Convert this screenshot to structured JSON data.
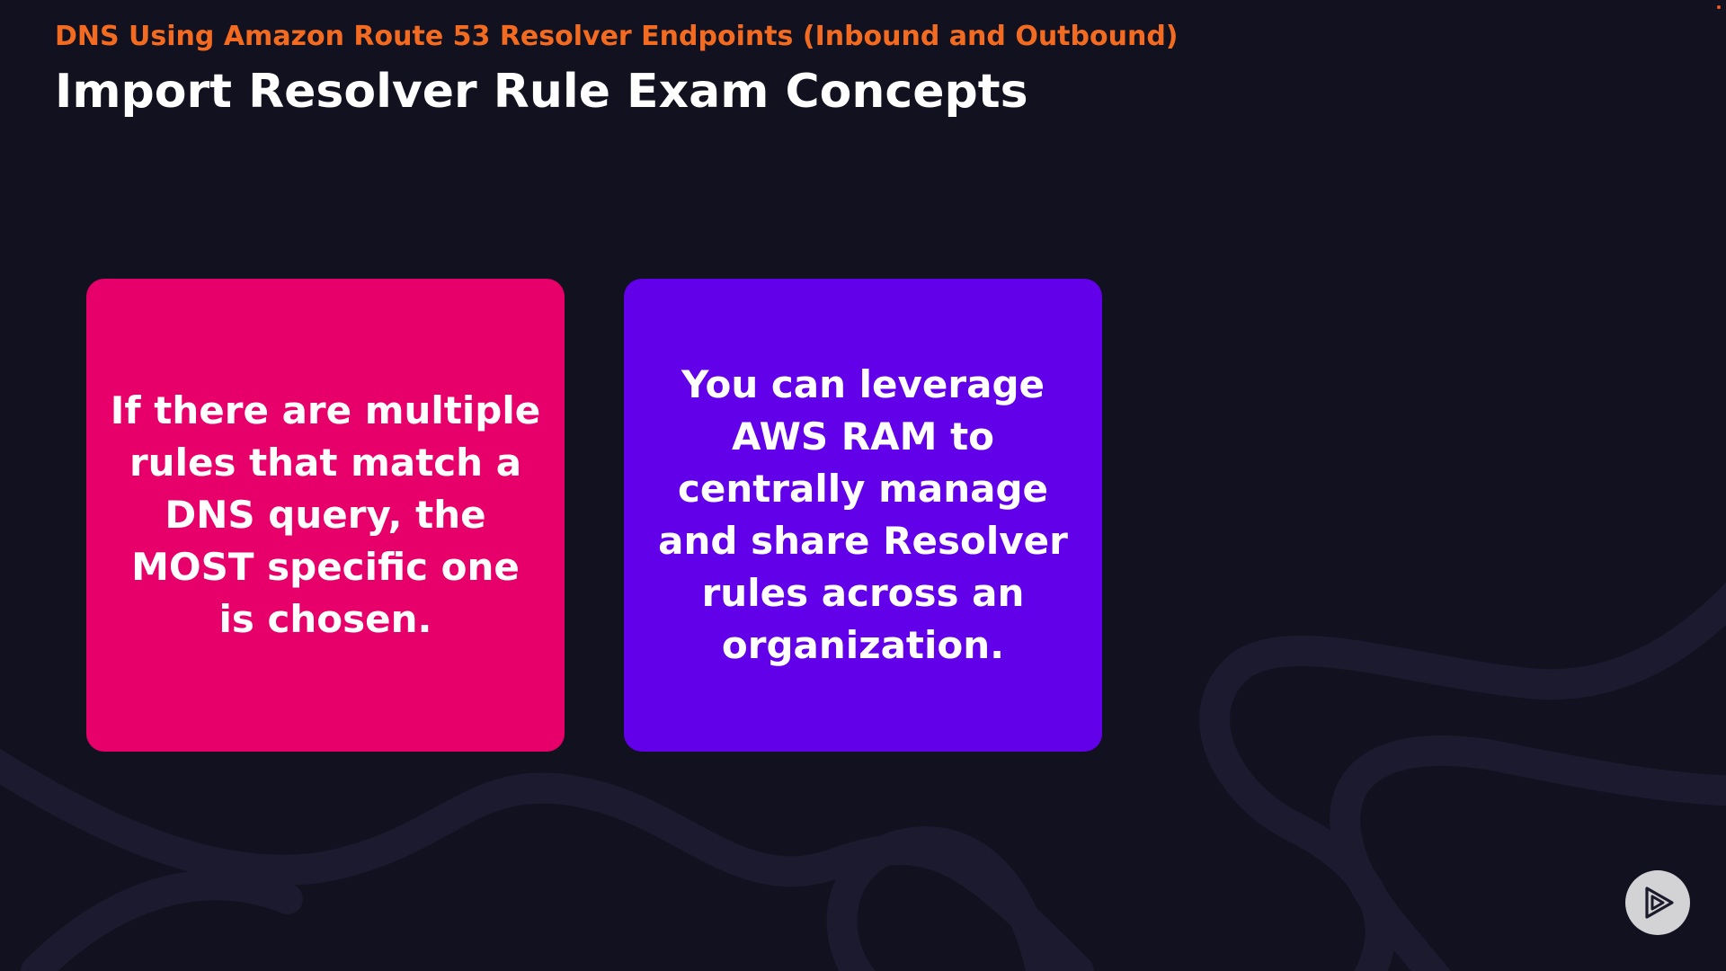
{
  "header": {
    "subtitle": "DNS Using Amazon Route 53 Resolver Endpoints (Inbound and Outbound)",
    "title": "Import Resolver Rule Exam Concepts"
  },
  "cards": [
    {
      "text": "If there are multiple rules that match a DNS query, the MOST specific one is chosen.",
      "color": "#e8006a"
    },
    {
      "text": "You can leverage AWS RAM to centrally manage and share Resolver rules across an organization.",
      "color": "#6200ea"
    }
  ],
  "controls": {
    "play_icon": "play-icon"
  },
  "colors": {
    "background": "#12111f",
    "accent": "#f26b21",
    "play_button_bg": "#d3d3d6",
    "play_icon": "#1c1b2b"
  }
}
